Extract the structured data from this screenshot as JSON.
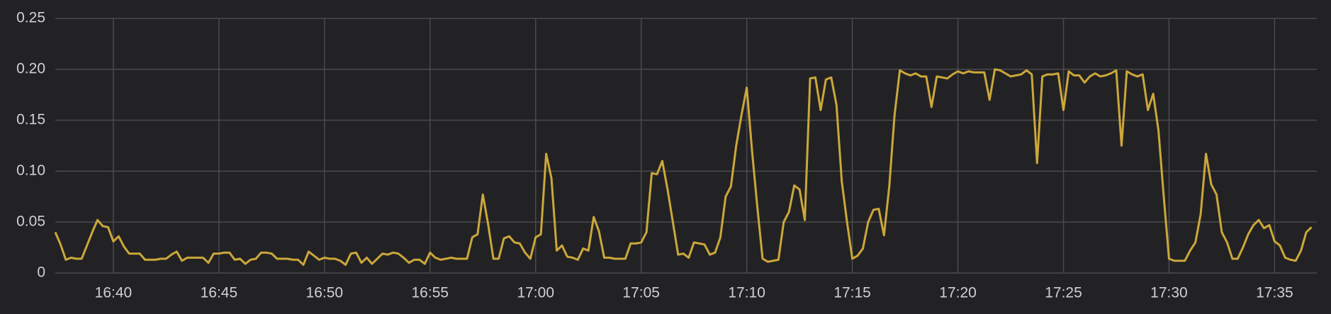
{
  "chart_data": {
    "type": "line",
    "x": [
      "16:37:15",
      "16:37:30",
      "16:37:45",
      "16:38:00",
      "16:38:15",
      "16:38:30",
      "16:38:45",
      "16:39:00",
      "16:39:15",
      "16:39:30",
      "16:39:45",
      "16:40:00",
      "16:40:15",
      "16:40:30",
      "16:40:45",
      "16:41:00",
      "16:41:15",
      "16:41:30",
      "16:41:45",
      "16:42:00",
      "16:42:15",
      "16:42:30",
      "16:42:45",
      "16:43:00",
      "16:43:15",
      "16:43:30",
      "16:43:45",
      "16:44:00",
      "16:44:15",
      "16:44:30",
      "16:44:45",
      "16:45:00",
      "16:45:15",
      "16:45:30",
      "16:45:45",
      "16:46:00",
      "16:46:15",
      "16:46:30",
      "16:46:45",
      "16:47:00",
      "16:47:15",
      "16:47:30",
      "16:47:45",
      "16:48:00",
      "16:48:15",
      "16:48:30",
      "16:48:45",
      "16:49:00",
      "16:49:15",
      "16:49:30",
      "16:49:45",
      "16:50:00",
      "16:50:15",
      "16:50:30",
      "16:50:45",
      "16:51:00",
      "16:51:15",
      "16:51:30",
      "16:51:45",
      "16:52:00",
      "16:52:15",
      "16:52:30",
      "16:52:45",
      "16:53:00",
      "16:53:15",
      "16:53:30",
      "16:53:45",
      "16:54:00",
      "16:54:15",
      "16:54:30",
      "16:54:45",
      "16:55:00",
      "16:55:15",
      "16:55:30",
      "16:55:45",
      "16:56:00",
      "16:56:15",
      "16:56:30",
      "16:56:45",
      "16:57:00",
      "16:57:15",
      "16:57:30",
      "16:57:45",
      "16:58:00",
      "16:58:15",
      "16:58:30",
      "16:58:45",
      "16:59:00",
      "16:59:15",
      "16:59:30",
      "16:59:45",
      "17:00:00",
      "17:00:15",
      "17:00:30",
      "17:00:45",
      "17:01:00",
      "17:01:15",
      "17:01:30",
      "17:01:45",
      "17:02:00",
      "17:02:15",
      "17:02:30",
      "17:02:45",
      "17:03:00",
      "17:03:15",
      "17:03:30",
      "17:03:45",
      "17:04:00",
      "17:04:15",
      "17:04:30",
      "17:04:45",
      "17:05:00",
      "17:05:15",
      "17:05:30",
      "17:05:45",
      "17:06:00",
      "17:06:15",
      "17:06:30",
      "17:06:45",
      "17:07:00",
      "17:07:15",
      "17:07:30",
      "17:07:45",
      "17:08:00",
      "17:08:15",
      "17:08:30",
      "17:08:45",
      "17:09:00",
      "17:09:15",
      "17:09:30",
      "17:09:45",
      "17:10:00",
      "17:10:15",
      "17:10:30",
      "17:10:45",
      "17:11:00",
      "17:11:15",
      "17:11:30",
      "17:11:45",
      "17:12:00",
      "17:12:15",
      "17:12:30",
      "17:12:45",
      "17:13:00",
      "17:13:15",
      "17:13:30",
      "17:13:45",
      "17:14:00",
      "17:14:15",
      "17:14:30",
      "17:14:45",
      "17:15:00",
      "17:15:15",
      "17:15:30",
      "17:15:45",
      "17:16:00",
      "17:16:15",
      "17:16:30",
      "17:16:45",
      "17:17:00",
      "17:17:15",
      "17:17:30",
      "17:17:45",
      "17:18:00",
      "17:18:15",
      "17:18:30",
      "17:18:45",
      "17:19:00",
      "17:19:15",
      "17:19:30",
      "17:19:45",
      "17:20:00",
      "17:20:15",
      "17:20:30",
      "17:20:45",
      "17:21:00",
      "17:21:15",
      "17:21:30",
      "17:21:45",
      "17:22:00",
      "17:22:15",
      "17:22:30",
      "17:22:45",
      "17:23:00",
      "17:23:15",
      "17:23:30",
      "17:23:45",
      "17:24:00",
      "17:24:15",
      "17:24:30",
      "17:24:45",
      "17:25:00",
      "17:25:15",
      "17:25:30",
      "17:25:45",
      "17:26:00",
      "17:26:15",
      "17:26:30",
      "17:26:45",
      "17:27:00",
      "17:27:15",
      "17:27:30",
      "17:27:45",
      "17:28:00",
      "17:28:15",
      "17:28:30",
      "17:28:45",
      "17:29:00",
      "17:29:15",
      "17:29:30",
      "17:29:45",
      "17:30:00",
      "17:30:15",
      "17:30:30",
      "17:30:45",
      "17:31:00",
      "17:31:15",
      "17:31:30",
      "17:31:45",
      "17:32:00",
      "17:32:15",
      "17:32:30",
      "17:32:45",
      "17:33:00",
      "17:33:15",
      "17:33:30",
      "17:33:45",
      "17:34:00",
      "17:34:15",
      "17:34:30",
      "17:34:45",
      "17:35:00",
      "17:35:15",
      "17:35:30",
      "17:35:45",
      "17:36:00",
      "17:36:15",
      "17:36:30",
      "17:36:45"
    ],
    "values": [
      0.04,
      0.028,
      0.013,
      0.015,
      0.014,
      0.014,
      0.027,
      0.04,
      0.052,
      0.046,
      0.045,
      0.031,
      0.036,
      0.026,
      0.019,
      0.019,
      0.019,
      0.013,
      0.013,
      0.013,
      0.014,
      0.014,
      0.018,
      0.021,
      0.012,
      0.015,
      0.015,
      0.015,
      0.015,
      0.01,
      0.019,
      0.019,
      0.02,
      0.02,
      0.013,
      0.014,
      0.009,
      0.013,
      0.014,
      0.02,
      0.02,
      0.019,
      0.014,
      0.014,
      0.014,
      0.013,
      0.013,
      0.008,
      0.021,
      0.017,
      0.013,
      0.015,
      0.014,
      0.014,
      0.012,
      0.008,
      0.019,
      0.02,
      0.01,
      0.015,
      0.009,
      0.014,
      0.019,
      0.018,
      0.02,
      0.019,
      0.015,
      0.01,
      0.013,
      0.013,
      0.009,
      0.02,
      0.015,
      0.013,
      0.014,
      0.015,
      0.014,
      0.014,
      0.014,
      0.035,
      0.038,
      0.077,
      0.048,
      0.014,
      0.014,
      0.034,
      0.036,
      0.03,
      0.029,
      0.02,
      0.014,
      0.035,
      0.038,
      0.117,
      0.093,
      0.022,
      0.027,
      0.016,
      0.015,
      0.013,
      0.024,
      0.022,
      0.055,
      0.041,
      0.015,
      0.015,
      0.014,
      0.014,
      0.014,
      0.029,
      0.029,
      0.03,
      0.04,
      0.098,
      0.097,
      0.11,
      0.082,
      0.05,
      0.018,
      0.019,
      0.015,
      0.03,
      0.029,
      0.028,
      0.018,
      0.02,
      0.035,
      0.075,
      0.085,
      0.125,
      0.155,
      0.182,
      0.12,
      0.065,
      0.014,
      0.011,
      0.012,
      0.013,
      0.05,
      0.06,
      0.086,
      0.082,
      0.052,
      0.191,
      0.192,
      0.16,
      0.19,
      0.192,
      0.165,
      0.09,
      0.05,
      0.014,
      0.017,
      0.024,
      0.05,
      0.062,
      0.063,
      0.037,
      0.085,
      0.155,
      0.199,
      0.196,
      0.194,
      0.196,
      0.193,
      0.193,
      0.163,
      0.193,
      0.192,
      0.191,
      0.195,
      0.198,
      0.196,
      0.198,
      0.197,
      0.197,
      0.197,
      0.17,
      0.2,
      0.199,
      0.196,
      0.193,
      0.194,
      0.195,
      0.199,
      0.195,
      0.108,
      0.193,
      0.195,
      0.195,
      0.196,
      0.16,
      0.198,
      0.194,
      0.194,
      0.187,
      0.193,
      0.196,
      0.193,
      0.194,
      0.196,
      0.199,
      0.125,
      0.198,
      0.195,
      0.193,
      0.195,
      0.16,
      0.176,
      0.14,
      0.075,
      0.014,
      0.012,
      0.012,
      0.012,
      0.022,
      0.03,
      0.058,
      0.117,
      0.087,
      0.077,
      0.04,
      0.03,
      0.014,
      0.014,
      0.025,
      0.038,
      0.047,
      0.052,
      0.044,
      0.047,
      0.031,
      0.027,
      0.015,
      0.013,
      0.012,
      0.022,
      0.04,
      0.045
    ],
    "color": "#cca73a",
    "xlim": [
      "16:37:15",
      "17:37:00"
    ],
    "xticks": [
      "16:40",
      "16:45",
      "16:50",
      "16:55",
      "17:00",
      "17:05",
      "17:10",
      "17:15",
      "17:20",
      "17:25",
      "17:30",
      "17:35"
    ],
    "ylim": [
      0,
      0.25
    ],
    "yticks": [
      0,
      0.05,
      {
        "value": 0.1,
        "label": "0.10"
      },
      0.15,
      {
        "value": 0.2,
        "label": "0.20"
      },
      0.25
    ],
    "grid": true
  }
}
